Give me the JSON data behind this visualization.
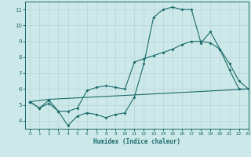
{
  "xlabel": "Humidex (Indice chaleur)",
  "bg_color": "#cde8e8",
  "line_color": "#1a6b6b",
  "xlim": [
    -0.5,
    23
  ],
  "ylim": [
    3.5,
    11.5
  ],
  "yticks": [
    4,
    5,
    6,
    7,
    8,
    9,
    10,
    11
  ],
  "xticks": [
    0,
    1,
    2,
    3,
    4,
    5,
    6,
    7,
    8,
    9,
    10,
    11,
    12,
    13,
    14,
    15,
    16,
    17,
    18,
    19,
    20,
    21,
    22,
    23
  ],
  "line1_x": [
    0,
    1,
    2,
    3,
    4,
    5,
    6,
    7,
    8,
    9,
    10,
    11,
    12,
    13,
    14,
    15,
    16,
    17,
    18,
    19,
    20,
    21,
    22,
    23
  ],
  "line1_y": [
    5.2,
    4.8,
    5.3,
    4.6,
    3.7,
    4.3,
    4.5,
    4.4,
    4.2,
    4.4,
    4.5,
    5.5,
    7.6,
    10.5,
    11.0,
    11.15,
    11.0,
    11.0,
    8.9,
    9.6,
    8.5,
    7.2,
    6.0,
    6.0
  ],
  "line2_x": [
    0,
    1,
    2,
    3,
    4,
    5,
    6,
    7,
    8,
    9,
    10,
    11,
    12,
    13,
    14,
    15,
    16,
    17,
    18,
    19,
    20,
    21,
    22,
    23
  ],
  "line2_y": [
    5.2,
    4.8,
    5.1,
    4.6,
    4.6,
    4.8,
    5.9,
    6.1,
    6.2,
    6.1,
    6.0,
    7.7,
    7.9,
    8.1,
    8.3,
    8.5,
    8.8,
    9.0,
    9.0,
    8.9,
    8.5,
    7.6,
    6.5,
    6.0
  ],
  "line3_x": [
    0,
    2,
    23
  ],
  "line3_y": [
    5.2,
    5.35,
    6.0
  ]
}
